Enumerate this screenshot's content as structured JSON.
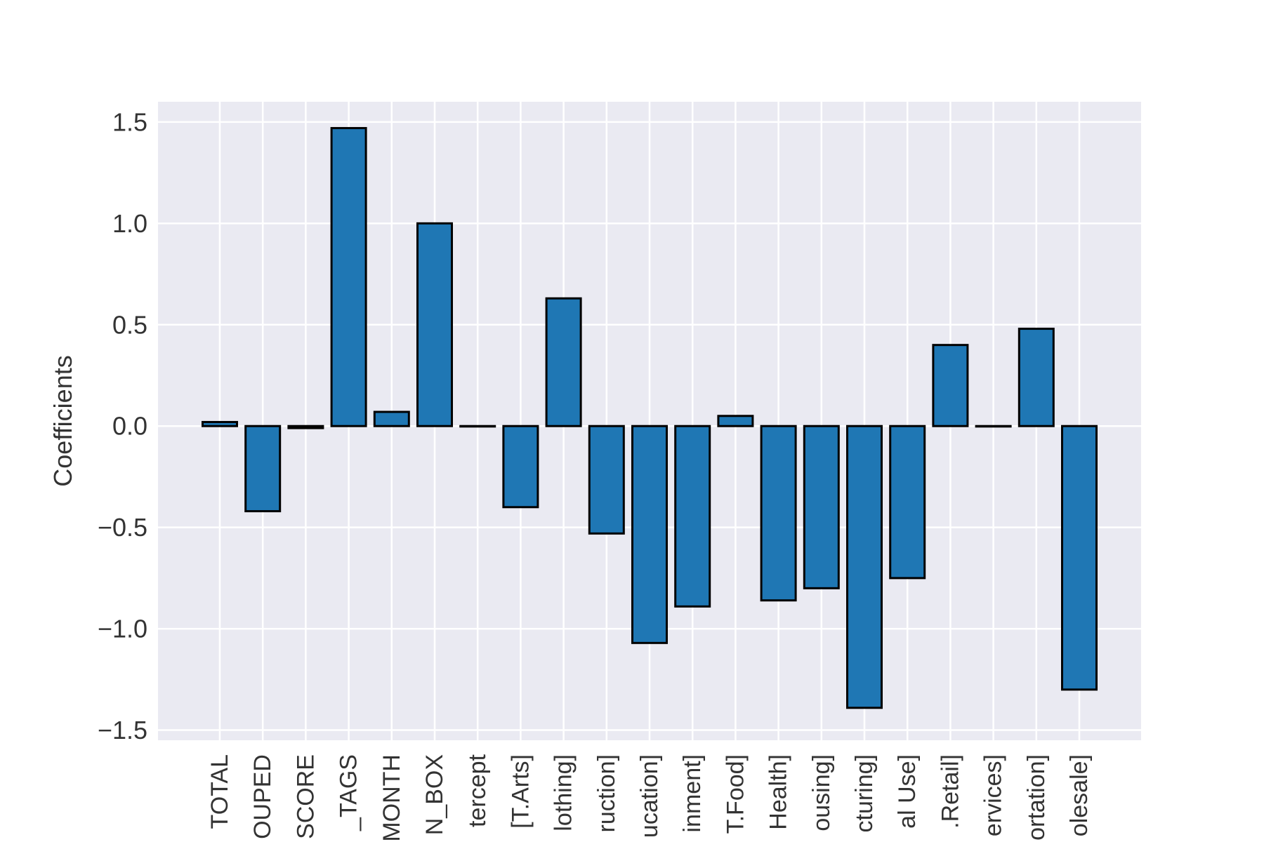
{
  "chart_data": {
    "type": "bar",
    "title": "",
    "xlabel": "",
    "ylabel": "Coefficients",
    "ylim": [
      -1.55,
      1.6
    ],
    "yticks": [
      -1.5,
      -1.0,
      -0.5,
      0.0,
      0.5,
      1.0,
      1.5
    ],
    "ytick_labels": [
      "−1.5",
      "−1.0",
      "−0.5",
      "0.0",
      "0.5",
      "1.0",
      "1.5"
    ],
    "grid": true,
    "legend": "none",
    "colors": {
      "bar": "#1f77b4",
      "bar_edge": "#000000",
      "background": "#eaeaf2",
      "grid": "#ffffff"
    },
    "categories": [
      "TOTAL",
      "OUPED",
      "SCORE",
      "_TAGS",
      "MONTH",
      "N_BOX",
      "tercept",
      "[T.Arts]",
      "lothing]",
      "ruction]",
      "ucation]",
      "inment]",
      "T.Food]",
      "Health]",
      "ousing]",
      "cturing]",
      "al Use]",
      ".Retail]",
      "ervices]",
      "ortation]",
      "olesale]"
    ],
    "values": [
      0.02,
      -0.42,
      -0.01,
      1.47,
      0.07,
      1.0,
      0.0,
      -0.4,
      0.63,
      -0.53,
      -1.07,
      -0.89,
      0.05,
      -0.86,
      -0.8,
      -1.39,
      -0.75,
      0.4,
      0.0,
      0.48,
      -1.3
    ]
  }
}
